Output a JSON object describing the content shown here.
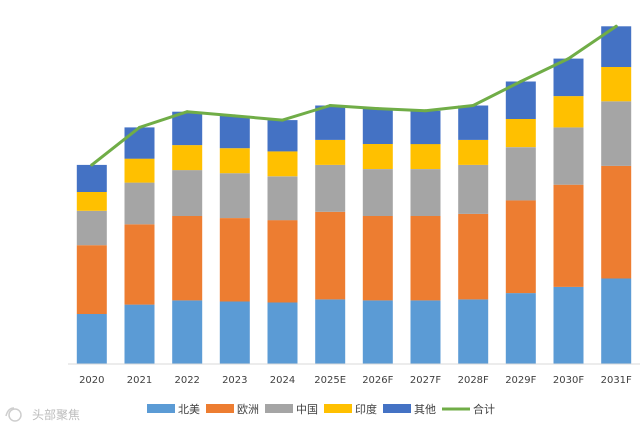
{
  "chart_data": {
    "type": "bar",
    "stacked": true,
    "categories": [
      "2020",
      "2021",
      "2022",
      "2023",
      "2024",
      "2025E",
      "2026F",
      "2027F",
      "2028F",
      "2029F",
      "2030F",
      "2031F"
    ],
    "series": [
      {
        "name": "北美",
        "kind": "bar",
        "color": "#5b9bd5",
        "values": [
          48,
          57,
          61,
          60,
          59,
          62,
          61,
          61,
          62,
          68,
          74,
          82
        ]
      },
      {
        "name": "欧洲",
        "kind": "bar",
        "color": "#ed7d31",
        "values": [
          66,
          77,
          81,
          80,
          79,
          84,
          81,
          81,
          82,
          89,
          98,
          108
        ]
      },
      {
        "name": "中国",
        "kind": "bar",
        "color": "#a5a5a5",
        "values": [
          33,
          40,
          44,
          43,
          42,
          45,
          45,
          45,
          47,
          51,
          55,
          62
        ]
      },
      {
        "name": "印度",
        "kind": "bar",
        "color": "#ffc000",
        "values": [
          18,
          23,
          24,
          24,
          24,
          24,
          24,
          24,
          24,
          27,
          30,
          33
        ]
      },
      {
        "name": "其他",
        "kind": "bar",
        "color": "#4472c4",
        "values": [
          26,
          30,
          32,
          31,
          30,
          33,
          34,
          32,
          33,
          36,
          36,
          39
        ]
      },
      {
        "name": "合计",
        "kind": "line",
        "color": "#70ad47",
        "values": [
          191,
          227,
          242,
          238,
          234,
          248,
          245,
          243,
          248,
          271,
          293,
          324
        ]
      }
    ],
    "ylim": [
      0,
      330
    ],
    "title": "",
    "xlabel": "",
    "ylabel": "",
    "grid": false,
    "legend_position": "bottom"
  },
  "watermark": "头部聚焦",
  "colors": {
    "axis": "#d9d9d9",
    "text": "#404040"
  }
}
